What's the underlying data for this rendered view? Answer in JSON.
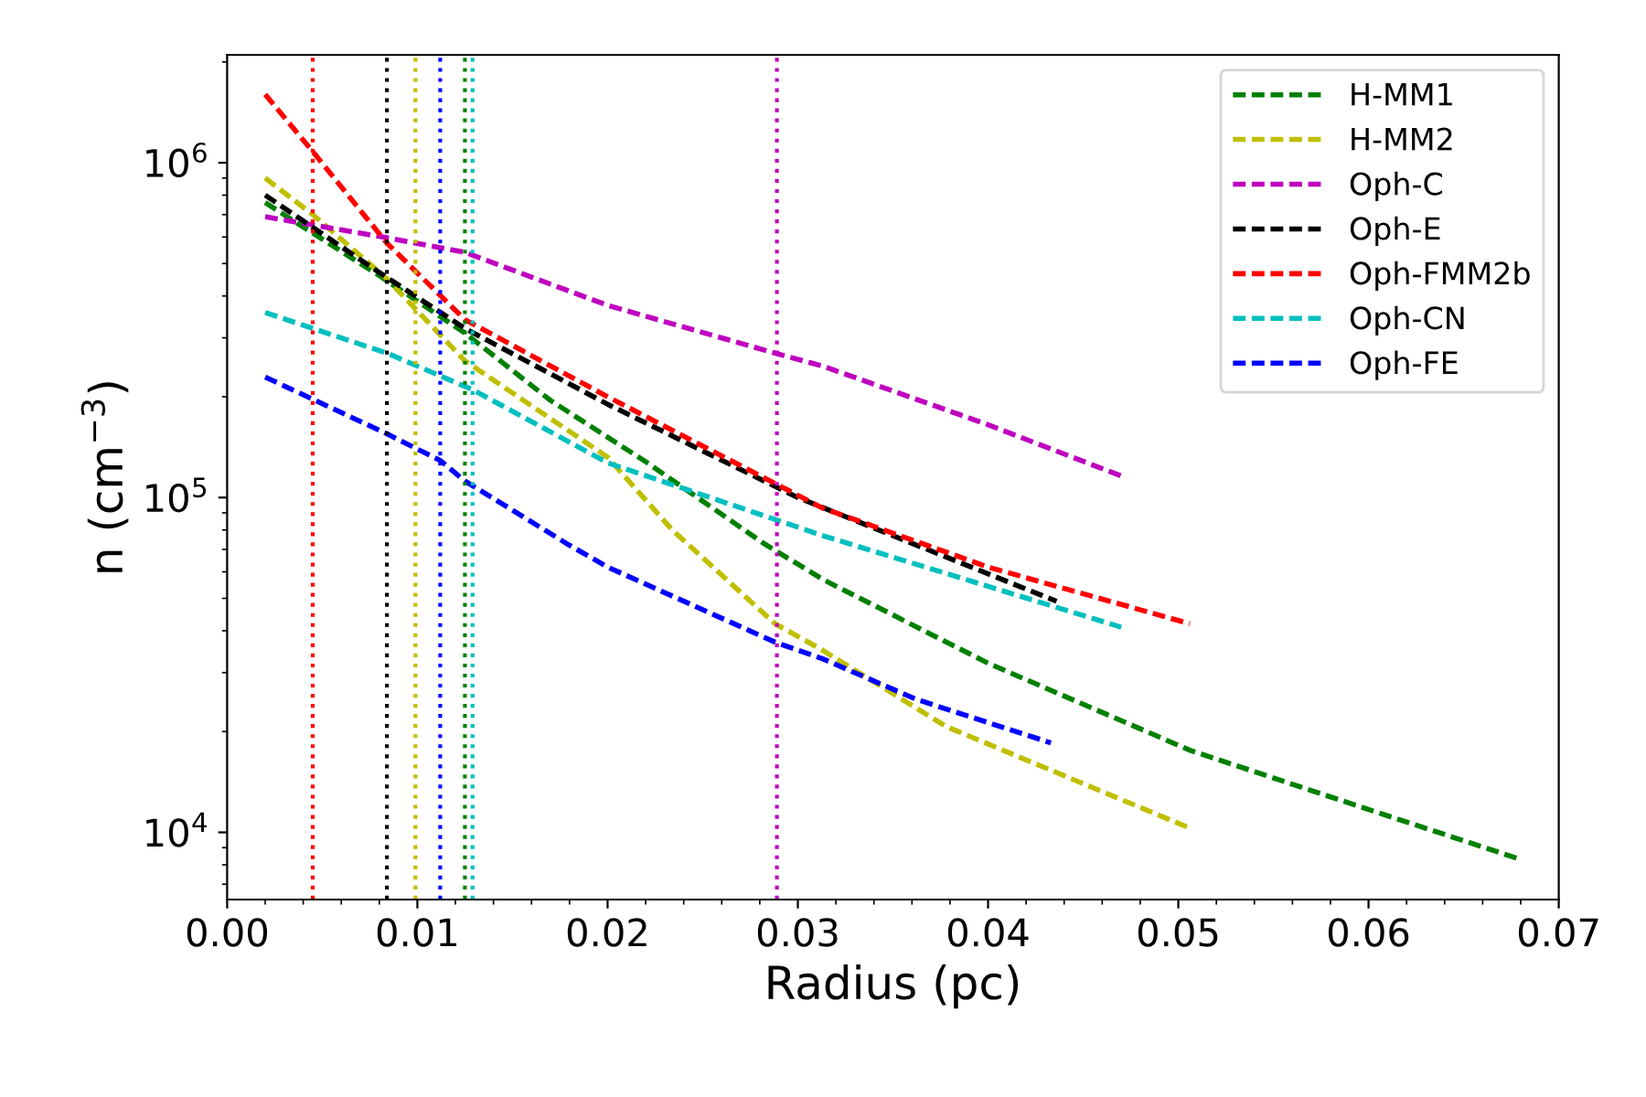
{
  "chart_data": {
    "type": "line",
    "xlabel": "Radius (pc)",
    "ylabel": "n (cm$^{−3}$)",
    "log": "y",
    "grid": false,
    "legend": "top right",
    "line_style": "dashed",
    "marker": "none",
    "xlim": [
      0,
      0.07
    ],
    "xticks": [
      {
        "value": 0,
        "label": "0.00"
      },
      {
        "value": 0.01,
        "label": "0.01"
      },
      {
        "value": 0.02,
        "label": "0.02"
      },
      {
        "value": 0.03,
        "label": "0.03"
      },
      {
        "value": 0.04,
        "label": "0.04"
      },
      {
        "value": 0.05,
        "label": "0.05"
      },
      {
        "value": 0.06,
        "label": "0.06"
      },
      {
        "value": 0.07,
        "label": "0.07"
      }
    ],
    "ylim": [
      6300,
      2100000
    ],
    "yticks": [
      {
        "value": 10000,
        "label": "10$^{4}$"
      },
      {
        "value": 100000,
        "label": "10$^{5}$"
      },
      {
        "value": 1000000,
        "label": "10$^{6}$"
      }
    ],
    "series": [
      {
        "name": "H-MM1",
        "color": "#008000",
        "x": [
          0.002,
          0.008,
          0.0125,
          0.017,
          0.022,
          0.0282,
          0.0313,
          0.04,
          0.0506,
          0.0602,
          0.068
        ],
        "values": [
          760000,
          460000,
          310000,
          195000,
          128000,
          73000,
          57000,
          32000,
          17600,
          11600,
          8300
        ]
      },
      {
        "name": "H-MM2",
        "color": "#bfbf00",
        "x": [
          0.002,
          0.0045,
          0.0084,
          0.0125,
          0.02,
          0.0234,
          0.0288,
          0.0313,
          0.0378,
          0.0506
        ],
        "values": [
          900000,
          700000,
          450000,
          256000,
          132000,
          80000,
          42000,
          35000,
          20700,
          10300
        ]
      },
      {
        "name": "Oph-C",
        "color": "#bf00bf",
        "x": [
          0.002,
          0.0084,
          0.0125,
          0.02,
          0.0288,
          0.0313,
          0.04,
          0.047
        ],
        "values": [
          690000,
          597000,
          540000,
          375000,
          270000,
          247000,
          165000,
          116000
        ]
      },
      {
        "name": "Oph-E",
        "color": "#000000",
        "x": [
          0.002,
          0.008,
          0.0125,
          0.02,
          0.03,
          0.0436
        ],
        "values": [
          800000,
          470000,
          320000,
          190000,
          100000,
          49000
        ]
      },
      {
        "name": "Oph-FMM2b",
        "color": "#ff0000",
        "x": [
          0.002,
          0.0045,
          0.0084,
          0.0125,
          0.02,
          0.0313,
          0.04,
          0.0506
        ],
        "values": [
          1600000,
          1080000,
          575000,
          340000,
          200000,
          93000,
          62000,
          42000
        ]
      },
      {
        "name": "Oph-CN",
        "color": "#00bfbf",
        "x": [
          0.002,
          0.0084,
          0.0129,
          0.02,
          0.0313,
          0.047
        ],
        "values": [
          357000,
          270000,
          210000,
          127000,
          77000,
          41000
        ]
      },
      {
        "name": "Oph-FE",
        "color": "#0000ff",
        "x": [
          0.002,
          0.0084,
          0.0112,
          0.0125,
          0.018,
          0.02,
          0.0288,
          0.0313,
          0.0362,
          0.0433
        ],
        "values": [
          229000,
          155000,
          129000,
          112000,
          72000,
          62000,
          37000,
          33000,
          25000,
          18500
        ]
      }
    ],
    "ref_lines": [
      {
        "axis": "x",
        "value": 0.0045,
        "color": "#ff0000",
        "line_style": "dotted"
      },
      {
        "axis": "x",
        "value": 0.0084,
        "color": "#000000",
        "line_style": "dotted"
      },
      {
        "axis": "x",
        "value": 0.0099,
        "color": "#bfbf00",
        "line_style": "dotted"
      },
      {
        "axis": "x",
        "value": 0.0112,
        "color": "#0000ff",
        "line_style": "dotted"
      },
      {
        "axis": "x",
        "value": 0.0125,
        "color": "#008000",
        "line_style": "dotted"
      },
      {
        "axis": "x",
        "value": 0.0129,
        "color": "#00bfbf",
        "line_style": "dotted"
      },
      {
        "axis": "x",
        "value": 0.0289,
        "color": "#bf00bf",
        "line_style": "dotted"
      }
    ]
  }
}
